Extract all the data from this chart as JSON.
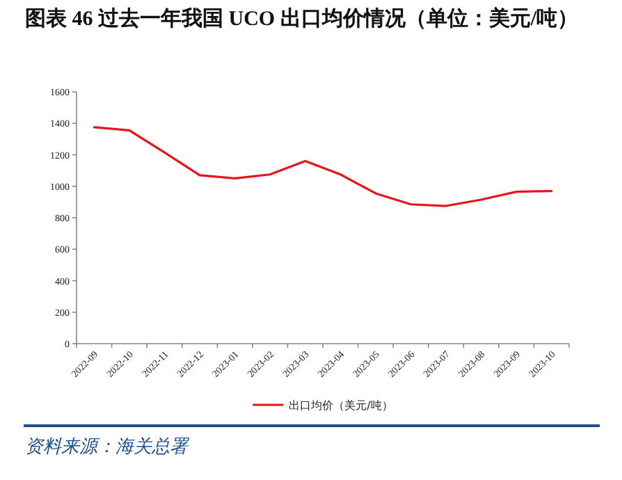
{
  "chart_data": {
    "type": "line",
    "title": "图表 46  过去一年我国 UCO 出口均价情况（单位：美元/吨）",
    "categories": [
      "2022-09",
      "2022-10",
      "2022-11",
      "2022-12",
      "2023-01",
      "2023-02",
      "2023-03",
      "2023-04",
      "2023-05",
      "2023-06",
      "2023-07",
      "2023-08",
      "2023-09",
      "2023-10"
    ],
    "series": [
      {
        "name": "出口均价（美元/吨）",
        "color": "#e8141c",
        "values": [
          1375,
          1355,
          1215,
          1070,
          1050,
          1075,
          1160,
          1075,
          955,
          885,
          875,
          915,
          965,
          970
        ]
      }
    ],
    "ylim": [
      0,
      1600
    ],
    "yticks": [
      0,
      200,
      400,
      600,
      800,
      1000,
      1200,
      1400,
      1600
    ],
    "legend": "bottom",
    "marker": "none",
    "line_style": "solid",
    "annotations": [
      "资料来源：海关总署"
    ]
  }
}
